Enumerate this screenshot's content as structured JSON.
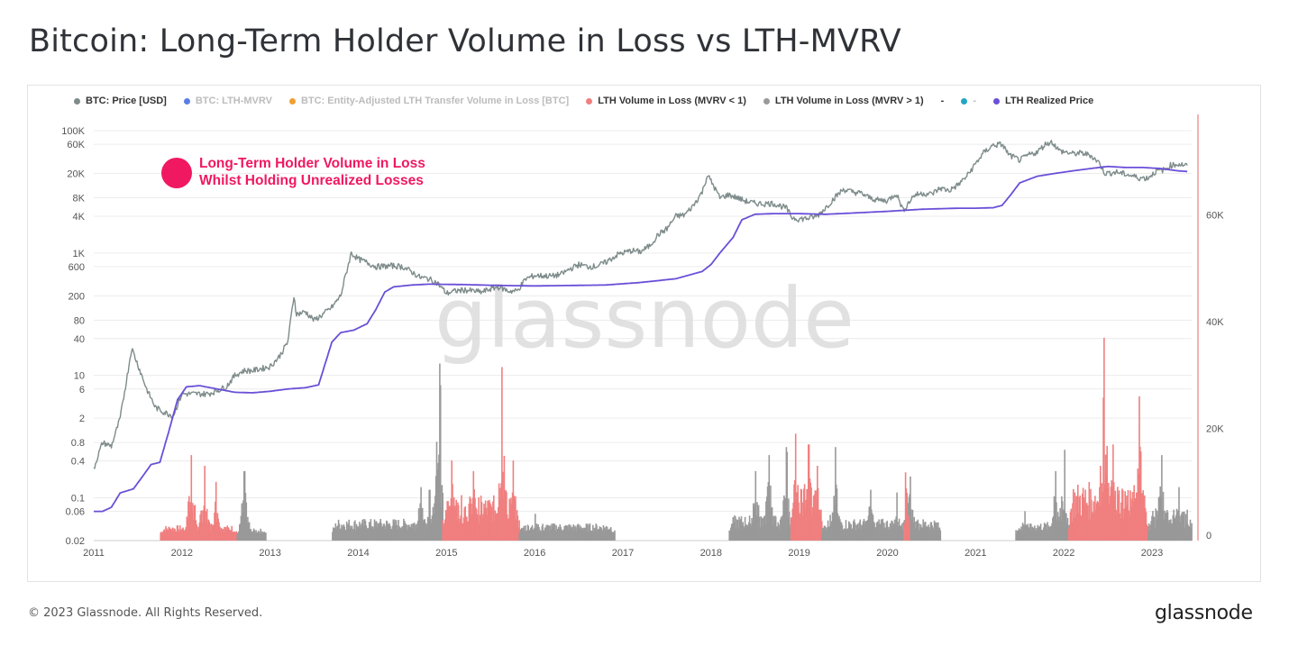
{
  "title": "Bitcoin: Long-Term Holder Volume in Loss vs LTH-MVRV",
  "legend": [
    {
      "label": "BTC: Price [USD]",
      "color": "#7d8b8a",
      "enabled": true
    },
    {
      "label": "BTC: LTH-MVRV",
      "color": "#5b7ee6",
      "enabled": false
    },
    {
      "label": "BTC: Entity-Adjusted LTH Transfer Volume in Loss [BTC]",
      "color": "#f0a030",
      "enabled": false
    },
    {
      "label": "LTH Volume in Loss (MVRV < 1)",
      "color": "#f07f7f",
      "enabled": true
    },
    {
      "label": "LTH Volume in Loss (MVRV > 1)",
      "color": "#999999",
      "enabled": true
    },
    {
      "label": "-",
      "color": "",
      "enabled": true
    },
    {
      "label": "-",
      "color": "#22a6c4",
      "enabled": false
    },
    {
      "label": "LTH Realized Price",
      "color": "#6a4fd8",
      "enabled": true
    }
  ],
  "annotation": {
    "line1": "Long-Term Holder Volume in Loss",
    "line2": "Whilst Holding Unrealized Losses",
    "color": "#f01860"
  },
  "watermark": "glassnode",
  "footer": {
    "copyright": "© 2023 Glassnode. All Rights Reserved.",
    "logo": "glassnode"
  },
  "chart_data": {
    "type": "line",
    "x_axis": {
      "labels": [
        "2011",
        "2012",
        "2013",
        "2014",
        "2015",
        "2016",
        "2017",
        "2018",
        "2019",
        "2020",
        "2021",
        "2022",
        "2023"
      ],
      "range": [
        2011.0,
        2023.45
      ]
    },
    "y_left": {
      "scale": "log",
      "ticks": [
        {
          "v": 100000,
          "label": "100K"
        },
        {
          "v": 60000,
          "label": "60K"
        },
        {
          "v": 20000,
          "label": "20K"
        },
        {
          "v": 8000,
          "label": "8K"
        },
        {
          "v": 4000,
          "label": "4K"
        },
        {
          "v": 1000,
          "label": "1K"
        },
        {
          "v": 600,
          "label": "600"
        },
        {
          "v": 200,
          "label": "200"
        },
        {
          "v": 80,
          "label": "80"
        },
        {
          "v": 40,
          "label": "40"
        },
        {
          "v": 10,
          "label": "10"
        },
        {
          "v": 6,
          "label": "6"
        },
        {
          "v": 2,
          "label": "2"
        },
        {
          "v": 0.8,
          "label": "0.8"
        },
        {
          "v": 0.4,
          "label": "0.4"
        },
        {
          "v": 0.1,
          "label": "0.1"
        },
        {
          "v": 0.06,
          "label": "0.06"
        },
        {
          "v": 0.02,
          "label": "0.02"
        }
      ]
    },
    "y_right": {
      "scale": "linear",
      "range": [
        0,
        80000
      ],
      "ticks": [
        {
          "v": 0,
          "label": "0"
        },
        {
          "v": 20000,
          "label": "20K"
        },
        {
          "v": 40000,
          "label": "40K"
        },
        {
          "v": 60000,
          "label": "60K"
        }
      ]
    },
    "series": [
      {
        "name": "BTC: Price [USD]",
        "axis": "left",
        "color": "#7d8b8a",
        "points": [
          [
            2011.0,
            0.3
          ],
          [
            2011.05,
            0.5
          ],
          [
            2011.1,
            0.8
          ],
          [
            2011.2,
            0.7
          ],
          [
            2011.3,
            2
          ],
          [
            2011.38,
            10
          ],
          [
            2011.43,
            28
          ],
          [
            2011.5,
            15
          ],
          [
            2011.6,
            6
          ],
          [
            2011.7,
            3
          ],
          [
            2011.8,
            2.5
          ],
          [
            2011.9,
            2.2
          ],
          [
            2012.0,
            5
          ],
          [
            2012.1,
            5
          ],
          [
            2012.2,
            5
          ],
          [
            2012.3,
            5
          ],
          [
            2012.5,
            6.5
          ],
          [
            2012.6,
            10
          ],
          [
            2012.7,
            12
          ],
          [
            2012.8,
            12
          ],
          [
            2013.0,
            14
          ],
          [
            2013.1,
            20
          ],
          [
            2013.2,
            35
          ],
          [
            2013.27,
            200
          ],
          [
            2013.3,
            100
          ],
          [
            2013.4,
            110
          ],
          [
            2013.5,
            80
          ],
          [
            2013.6,
            100
          ],
          [
            2013.7,
            130
          ],
          [
            2013.8,
            200
          ],
          [
            2013.85,
            400
          ],
          [
            2013.92,
            1000
          ],
          [
            2014.0,
            800
          ],
          [
            2014.1,
            700
          ],
          [
            2014.2,
            600
          ],
          [
            2014.4,
            620
          ],
          [
            2014.5,
            600
          ],
          [
            2014.6,
            500
          ],
          [
            2014.7,
            400
          ],
          [
            2014.8,
            380
          ],
          [
            2014.9,
            320
          ],
          [
            2015.0,
            220
          ],
          [
            2015.1,
            240
          ],
          [
            2015.2,
            250
          ],
          [
            2015.4,
            230
          ],
          [
            2015.5,
            260
          ],
          [
            2015.6,
            280
          ],
          [
            2015.7,
            240
          ],
          [
            2015.8,
            240
          ],
          [
            2015.9,
            380
          ],
          [
            2016.0,
            430
          ],
          [
            2016.2,
            420
          ],
          [
            2016.3,
            450
          ],
          [
            2016.4,
            550
          ],
          [
            2016.5,
            650
          ],
          [
            2016.6,
            600
          ],
          [
            2016.7,
            610
          ],
          [
            2016.8,
            700
          ],
          [
            2016.95,
            960
          ],
          [
            2017.1,
            1100
          ],
          [
            2017.2,
            1050
          ],
          [
            2017.3,
            1300
          ],
          [
            2017.4,
            2000
          ],
          [
            2017.5,
            2500
          ],
          [
            2017.6,
            4000
          ],
          [
            2017.7,
            4200
          ],
          [
            2017.8,
            6000
          ],
          [
            2017.9,
            10000
          ],
          [
            2017.96,
            19000
          ],
          [
            2018.05,
            11000
          ],
          [
            2018.1,
            8000
          ],
          [
            2018.2,
            9000
          ],
          [
            2018.3,
            8000
          ],
          [
            2018.4,
            7000
          ],
          [
            2018.5,
            6500
          ],
          [
            2018.6,
            6400
          ],
          [
            2018.7,
            6500
          ],
          [
            2018.85,
            5500
          ],
          [
            2018.92,
            3800
          ],
          [
            2019.0,
            3600
          ],
          [
            2019.1,
            3700
          ],
          [
            2019.2,
            4000
          ],
          [
            2019.3,
            5500
          ],
          [
            2019.4,
            8000
          ],
          [
            2019.5,
            11000
          ],
          [
            2019.6,
            10000
          ],
          [
            2019.7,
            9500
          ],
          [
            2019.8,
            8000
          ],
          [
            2019.9,
            7300
          ],
          [
            2020.0,
            7200
          ],
          [
            2020.1,
            9500
          ],
          [
            2020.18,
            5000
          ],
          [
            2020.3,
            8800
          ],
          [
            2020.4,
            9500
          ],
          [
            2020.5,
            9200
          ],
          [
            2020.6,
            11500
          ],
          [
            2020.7,
            10500
          ],
          [
            2020.8,
            13000
          ],
          [
            2020.9,
            18000
          ],
          [
            2021.0,
            29000
          ],
          [
            2021.1,
            45000
          ],
          [
            2021.2,
            58000
          ],
          [
            2021.3,
            60000
          ],
          [
            2021.38,
            40000
          ],
          [
            2021.5,
            33000
          ],
          [
            2021.6,
            40000
          ],
          [
            2021.7,
            45000
          ],
          [
            2021.8,
            62000
          ],
          [
            2021.87,
            65000
          ],
          [
            2021.95,
            47000
          ],
          [
            2022.1,
            42000
          ],
          [
            2022.2,
            43000
          ],
          [
            2022.3,
            40000
          ],
          [
            2022.4,
            30000
          ],
          [
            2022.47,
            20000
          ],
          [
            2022.6,
            21000
          ],
          [
            2022.7,
            19500
          ],
          [
            2022.85,
            17000
          ],
          [
            2022.95,
            16800
          ],
          [
            2023.05,
            22000
          ],
          [
            2023.15,
            23000
          ],
          [
            2023.2,
            27000
          ],
          [
            2023.3,
            28500
          ],
          [
            2023.4,
            27000
          ]
        ]
      },
      {
        "name": "LTH Realized Price",
        "axis": "left",
        "color": "#6a4fd8",
        "points": [
          [
            2011.0,
            0.06
          ],
          [
            2011.1,
            0.06
          ],
          [
            2011.2,
            0.07
          ],
          [
            2011.3,
            0.12
          ],
          [
            2011.45,
            0.14
          ],
          [
            2011.55,
            0.22
          ],
          [
            2011.65,
            0.35
          ],
          [
            2011.75,
            0.38
          ],
          [
            2011.85,
            1.2
          ],
          [
            2011.95,
            4
          ],
          [
            2012.05,
            6.5
          ],
          [
            2012.2,
            6.8
          ],
          [
            2012.4,
            6
          ],
          [
            2012.6,
            5.3
          ],
          [
            2012.8,
            5.2
          ],
          [
            2013.0,
            5.5
          ],
          [
            2013.2,
            6
          ],
          [
            2013.4,
            6.3
          ],
          [
            2013.55,
            7
          ],
          [
            2013.7,
            35
          ],
          [
            2013.8,
            50
          ],
          [
            2013.95,
            55
          ],
          [
            2014.1,
            70
          ],
          [
            2014.2,
            120
          ],
          [
            2014.3,
            230
          ],
          [
            2014.4,
            280
          ],
          [
            2014.6,
            300
          ],
          [
            2014.8,
            310
          ],
          [
            2015.2,
            305
          ],
          [
            2015.6,
            295
          ],
          [
            2016.0,
            290
          ],
          [
            2016.4,
            295
          ],
          [
            2016.8,
            300
          ],
          [
            2017.2,
            330
          ],
          [
            2017.6,
            380
          ],
          [
            2017.9,
            500
          ],
          [
            2018.0,
            650
          ],
          [
            2018.1,
            1000
          ],
          [
            2018.25,
            1800
          ],
          [
            2018.35,
            3500
          ],
          [
            2018.5,
            4300
          ],
          [
            2018.7,
            4400
          ],
          [
            2019.0,
            4400
          ],
          [
            2019.3,
            4300
          ],
          [
            2019.6,
            4500
          ],
          [
            2020.0,
            4800
          ],
          [
            2020.4,
            5200
          ],
          [
            2020.8,
            5400
          ],
          [
            2021.0,
            5400
          ],
          [
            2021.2,
            5500
          ],
          [
            2021.3,
            6000
          ],
          [
            2021.4,
            9000
          ],
          [
            2021.5,
            14000
          ],
          [
            2021.7,
            18000
          ],
          [
            2021.9,
            20000
          ],
          [
            2022.1,
            22000
          ],
          [
            2022.3,
            24000
          ],
          [
            2022.5,
            26000
          ],
          [
            2022.7,
            25000
          ],
          [
            2022.9,
            25000
          ],
          [
            2023.1,
            24000
          ],
          [
            2023.3,
            22000
          ],
          [
            2023.4,
            21500
          ]
        ]
      }
    ],
    "bars": {
      "name": "LTH Volume in Loss",
      "axis": "right",
      "segments": [
        {
          "range": [
            2011.75,
            2012.62
          ],
          "pattern": "peaks",
          "color": "#f07f7f",
          "peaks": [
            [
              2012.1,
              15000
            ],
            [
              2012.25,
              13000
            ],
            [
              2012.38,
              10000
            ]
          ],
          "base": 1500
        },
        {
          "range": [
            2012.62,
            2012.95
          ],
          "color": "#999999",
          "peaks": [
            [
              2012.7,
              12000
            ]
          ],
          "base": 1000
        },
        {
          "range": [
            2013.7,
            2014.95
          ],
          "color": "#999999",
          "peaks": [
            [
              2014.7,
              9000
            ],
            [
              2014.8,
              8500
            ],
            [
              2014.92,
              39500
            ],
            [
              2014.88,
              17500
            ]
          ],
          "base": 2500
        },
        {
          "range": [
            2014.95,
            2015.82
          ],
          "color": "#f07f7f",
          "peaks": [
            [
              2015.05,
              14000
            ],
            [
              2015.3,
              12000
            ],
            [
              2015.62,
              31500
            ],
            [
              2015.75,
              14000
            ]
          ],
          "base": 6000
        },
        {
          "range": [
            2015.82,
            2016.9
          ],
          "color": "#999999",
          "peaks": [
            [
              2016.0,
              4000
            ]
          ],
          "base": 1800
        },
        {
          "range": [
            2018.2,
            2018.9
          ],
          "color": "#999999",
          "peaks": [
            [
              2018.5,
              12000
            ],
            [
              2018.65,
              15000
            ],
            [
              2018.85,
              16500
            ]
          ],
          "base": 3000
        },
        {
          "range": [
            2018.9,
            2019.25
          ],
          "color": "#f07f7f",
          "peaks": [
            [
              2018.95,
              19000
            ],
            [
              2019.1,
              17000
            ],
            [
              2019.2,
              13000
            ]
          ],
          "base": 8000
        },
        {
          "range": [
            2019.25,
            2020.6
          ],
          "color": "#999999",
          "peaks": [
            [
              2019.4,
              16500
            ],
            [
              2019.8,
              8500
            ],
            [
              2020.1,
              8000
            ],
            [
              2020.25,
              11000
            ]
          ],
          "base": 2500
        },
        {
          "range": [
            2020.18,
            2020.24
          ],
          "color": "#f07f7f",
          "peaks": [
            [
              2020.2,
              19500
            ]
          ],
          "base": 6000
        },
        {
          "range": [
            2021.45,
            2022.05
          ],
          "color": "#999999",
          "peaks": [
            [
              2021.55,
              4500
            ],
            [
              2021.9,
              12000
            ],
            [
              2022.0,
              16500
            ]
          ],
          "base": 2000
        },
        {
          "range": [
            2022.05,
            2022.95
          ],
          "color": "#f07f7f",
          "peaks": [
            [
              2022.45,
              37000
            ],
            [
              2022.55,
              17000
            ],
            [
              2022.85,
              26000
            ]
          ],
          "base": 8000
        },
        {
          "range": [
            2022.95,
            2023.45
          ],
          "color": "#999999",
          "peaks": [
            [
              2023.1,
              15000
            ],
            [
              2023.3,
              9000
            ]
          ],
          "base": 4000
        }
      ]
    },
    "grid": true,
    "legend_position": "top-left"
  }
}
